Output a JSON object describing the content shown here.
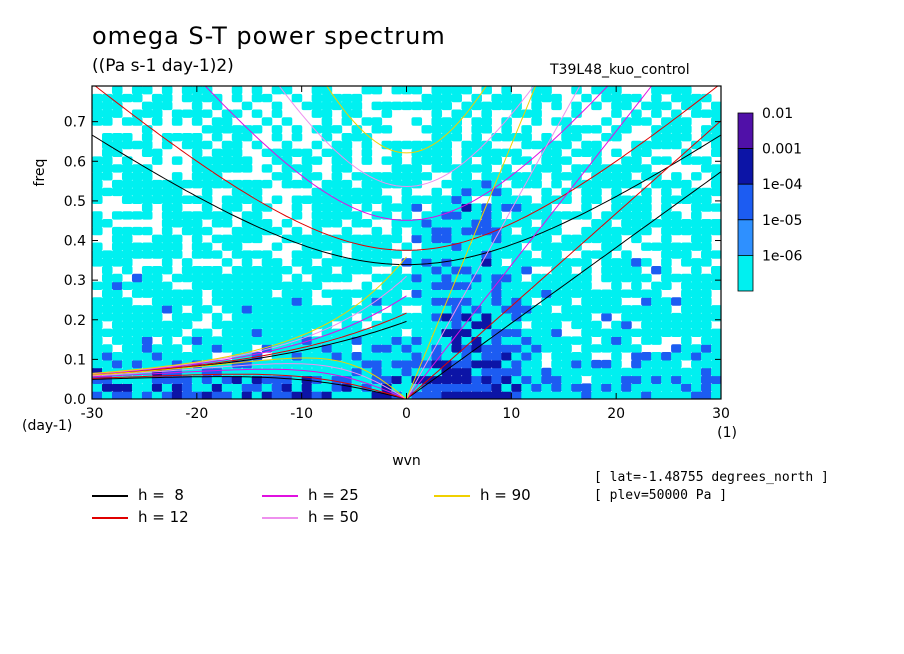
{
  "header": {
    "title": "omega S-T power spectrum",
    "units": "((Pa s-1 day-1)2)",
    "dataset": "T39L48_kuo_control"
  },
  "chart_data": {
    "type": "heatmap",
    "xlabel": "wvn",
    "ylabel": "freq",
    "xunit": "(1)",
    "yunit": "(day-1)",
    "xlim": [
      -30,
      30
    ],
    "ylim": [
      0,
      0.79
    ],
    "xticks": [
      "-30",
      "-20",
      "-10",
      "0",
      "10",
      "20",
      "30"
    ],
    "yticks": [
      "0.0",
      "0.1",
      "0.2",
      "0.3",
      "0.4",
      "0.5",
      "0.6",
      "0.7"
    ],
    "colorbar": {
      "labels": [
        "0.01",
        "0.001",
        "1e-04",
        "1e-05",
        "1e-06"
      ],
      "colors": [
        "#5010a8",
        "#0c14a6",
        "#1c5cf2",
        "#2e90ff",
        "#00f0f0"
      ]
    },
    "dispersion_curves": [
      {
        "h": "h =  8",
        "color": "#000000"
      },
      {
        "h": "h = 12",
        "color": "#e00000"
      },
      {
        "h": "h = 25",
        "color": "#e010e0"
      },
      {
        "h": "h = 50",
        "color": "#ee90ee"
      },
      {
        "h": "h = 90",
        "color": "#f0d000"
      }
    ]
  },
  "meta": {
    "lat": "[ lat=-1.48755 degrees_north ]",
    "plev": "[ plev=50000 Pa ]"
  }
}
